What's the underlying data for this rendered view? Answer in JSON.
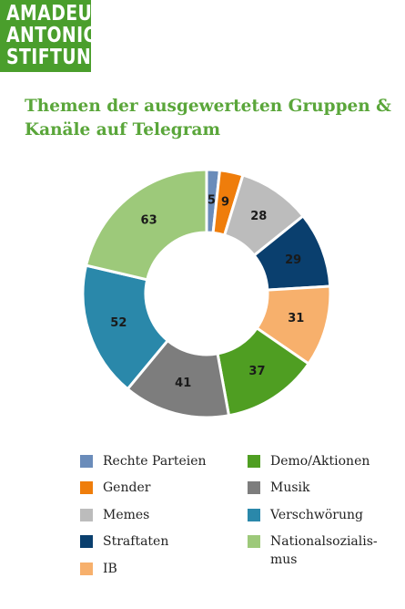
{
  "logo": {
    "line1": "AMADEU",
    "line2": "ANTONIO",
    "line3": "STIFTUNG"
  },
  "chart_data": {
    "type": "pie",
    "title_line1": "Themen der ausgewerteten Gruppen &",
    "title_line2": "Kanäle auf Telegram",
    "categories": [
      "Rechte Parteien",
      "Gender",
      "Memes",
      "Straftaten",
      "IB",
      "Demo/Aktionen",
      "Musik",
      "Verschwörung",
      "Nationalsozialis-\nmus"
    ],
    "values": [
      5,
      9,
      28,
      29,
      31,
      37,
      41,
      52,
      63
    ],
    "colors": [
      "#6a8cba",
      "#ef7d0b",
      "#bcbcbc",
      "#0a3f6e",
      "#f7b06c",
      "#4f9e22",
      "#7d7d7d",
      "#2a88aa",
      "#9dc97a"
    ],
    "donut": true,
    "data_labels": true,
    "legend": "bottom"
  }
}
